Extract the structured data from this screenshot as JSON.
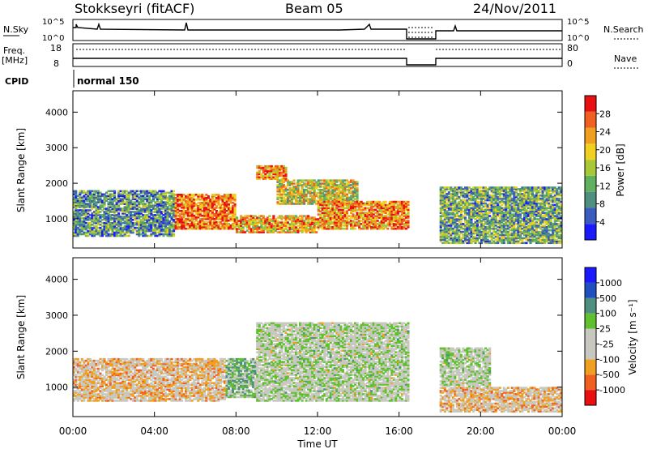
{
  "header": {
    "station": "Stokkseyri (fitACF)",
    "beam": "Beam 05",
    "date": "24/Nov/2011"
  },
  "summary_panels": {
    "nsky_label": "N.Sky",
    "nsearch_label": "N.Search",
    "freq_label": "Freq.",
    "freq_unit": "[MHz]",
    "nave_label": "Nave",
    "cpid_label": "CPID",
    "cpid_value": "normal 150",
    "noise_ticks": [
      "10^5",
      "10^0"
    ],
    "freq_ticks": [
      "18",
      "8"
    ],
    "nave_ticks": [
      "80",
      "0"
    ]
  },
  "chart_data": [
    {
      "type": "heatmap",
      "name": "power",
      "ylabel": "Slant Range [km]",
      "ytick_labels": [
        "1000",
        "2000",
        "3000",
        "4000"
      ],
      "yticks": [
        1000,
        2000,
        3000,
        4000
      ],
      "ylim": [
        180,
        4600
      ],
      "colorbar_label": "Power [dB]",
      "colorbar_ticks": [
        "4",
        "8",
        "12",
        "16",
        "20",
        "24",
        "28"
      ],
      "colorscale": [
        "#1a1aff",
        "#3b5bbf",
        "#4f8f7f",
        "#60b060",
        "#a8c838",
        "#f0d020",
        "#f0a020",
        "#f06020",
        "#e81010"
      ],
      "vmin": 0,
      "vmax": 32,
      "echo_bands": [
        {
          "t_start": 0.0,
          "t_end": 5.0,
          "r_low": 500,
          "r_high": 1800,
          "level": 10
        },
        {
          "t_start": 5.0,
          "t_end": 8.0,
          "r_low": 700,
          "r_high": 1700,
          "level": 26
        },
        {
          "t_start": 8.0,
          "t_end": 12.0,
          "r_low": 600,
          "r_high": 1100,
          "level": 22
        },
        {
          "t_start": 9.0,
          "t_end": 10.5,
          "r_low": 2100,
          "r_high": 2500,
          "level": 24
        },
        {
          "t_start": 10.0,
          "t_end": 14.0,
          "r_low": 1400,
          "r_high": 2100,
          "level": 18
        },
        {
          "t_start": 12.0,
          "t_end": 16.5,
          "r_low": 700,
          "r_high": 1500,
          "level": 24
        },
        {
          "t_start": 18.0,
          "t_end": 24.0,
          "r_low": 300,
          "r_high": 1900,
          "level": 12
        }
      ]
    },
    {
      "type": "heatmap",
      "name": "velocity",
      "ylabel": "Slant Range [km]",
      "ytick_labels": [
        "1000",
        "2000",
        "3000",
        "4000"
      ],
      "yticks": [
        1000,
        2000,
        3000,
        4000
      ],
      "ylim": [
        180,
        4600
      ],
      "colorbar_label": "Velocity [m s⁻¹]",
      "colorbar_ticks": [
        "-1000",
        "-500",
        "-100",
        "-25",
        "25",
        "100",
        "500",
        "1000"
      ],
      "colorscale": [
        "#e81010",
        "#f06020",
        "#f0a020",
        "#c8c8c0",
        "#c8c8c0",
        "#60c030",
        "#4f8f7f",
        "#2050c0",
        "#1a1aff"
      ],
      "vmin": -1000,
      "vmax": 1000,
      "echo_bands": [
        {
          "t_start": 0.0,
          "t_end": 7.5,
          "r_low": 600,
          "r_high": 1800,
          "level": -300
        },
        {
          "t_start": 7.5,
          "t_end": 9.0,
          "r_low": 700,
          "r_high": 1800,
          "level": 200
        },
        {
          "t_start": 9.0,
          "t_end": 16.5,
          "r_low": 600,
          "r_high": 2800,
          "level": 0
        },
        {
          "t_start": 18.0,
          "t_end": 24.0,
          "r_low": 300,
          "r_high": 1000,
          "level": -300
        },
        {
          "t_start": 18.0,
          "t_end": 20.5,
          "r_low": 1000,
          "r_high": 2100,
          "level": 0
        }
      ]
    }
  ],
  "time_axis": {
    "xlabel": "Time UT",
    "tick_labels": [
      "00:00",
      "04:00",
      "08:00",
      "12:00",
      "16:00",
      "20:00",
      "00:00"
    ],
    "ticks_hours": [
      0,
      4,
      8,
      12,
      16,
      20,
      24
    ],
    "xlim": [
      0,
      24
    ],
    "data_gap_hours": [
      16.5,
      18.0
    ]
  }
}
